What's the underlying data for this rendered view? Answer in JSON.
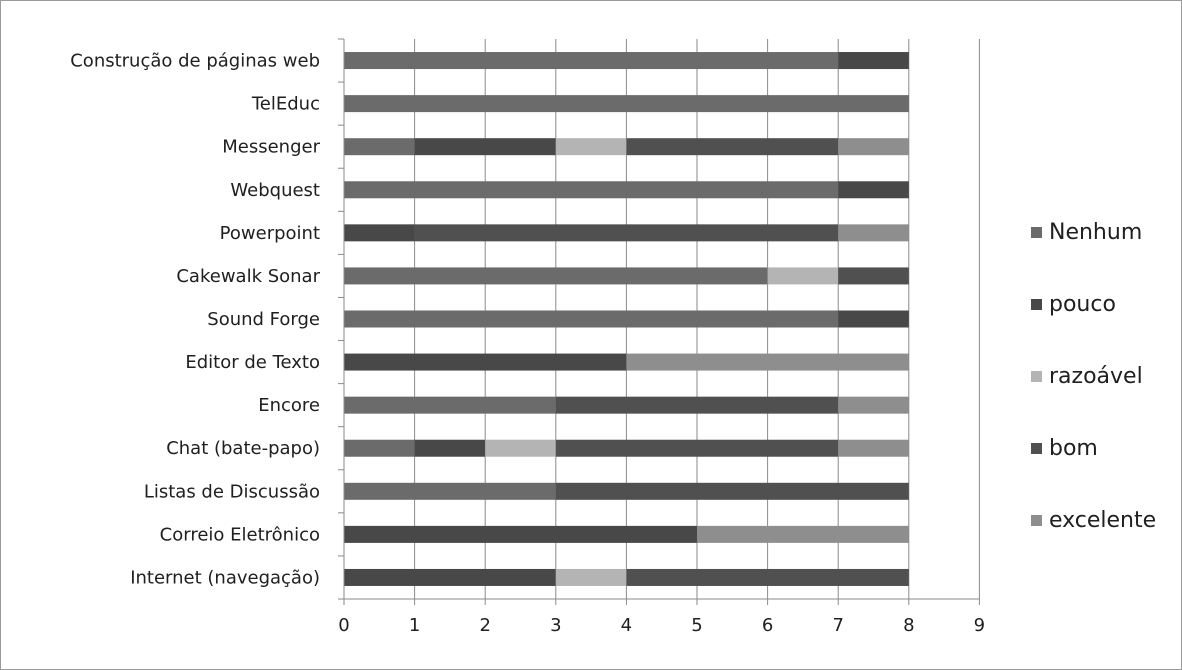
{
  "chart_data": {
    "type": "bar",
    "orientation": "horizontal",
    "stacked": true,
    "categories": [
      "Construção de páginas web",
      "TelEduc",
      "Messenger",
      "Webquest",
      "Powerpoint",
      "Cakewalk Sonar",
      "Sound Forge",
      "Editor de Texto",
      "Encore",
      "Chat (bate-papo)",
      "Listas de Discussão",
      "Correio Eletrônico",
      "Internet (navegação)"
    ],
    "series": [
      {
        "name": "Nenhum",
        "color": "#6b6b6b",
        "values": [
          7,
          8,
          1,
          7,
          0,
          6,
          7,
          0,
          3,
          1,
          3,
          0,
          0
        ]
      },
      {
        "name": "pouco",
        "color": "#484848",
        "values": [
          1,
          0,
          2,
          1,
          1,
          0,
          1,
          4,
          0,
          1,
          0,
          5,
          3
        ]
      },
      {
        "name": "razoável",
        "color": "#b4b4b4",
        "values": [
          0,
          0,
          1,
          0,
          0,
          1,
          0,
          0,
          0,
          1,
          0,
          0,
          1
        ]
      },
      {
        "name": "bom",
        "color": "#505050",
        "values": [
          0,
          0,
          3,
          0,
          6,
          1,
          0,
          0,
          4,
          4,
          5,
          0,
          4
        ]
      },
      {
        "name": "excelente",
        "color": "#8e8e8e",
        "values": [
          0,
          0,
          1,
          0,
          1,
          0,
          0,
          4,
          1,
          1,
          0,
          3,
          0
        ]
      }
    ],
    "xlim": [
      0,
      9
    ],
    "x_ticks": [
      "0",
      "1",
      "2",
      "3",
      "4",
      "5",
      "6",
      "7",
      "8",
      "9"
    ],
    "grid": "vertical",
    "legend_position": "right",
    "title": "",
    "xlabel": "",
    "ylabel": ""
  }
}
